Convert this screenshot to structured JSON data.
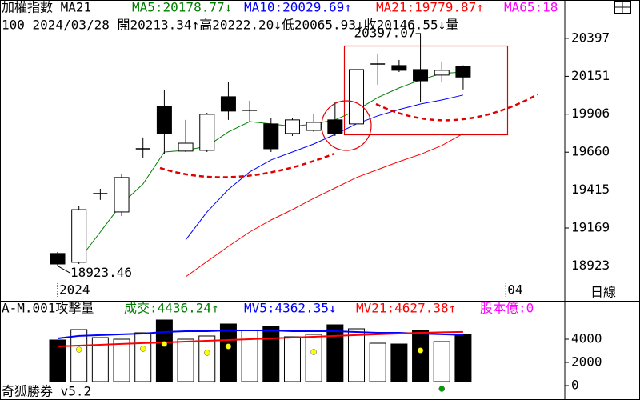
{
  "chart_data": [
    {
      "type": "candlestick",
      "title": "加權指數 MA21",
      "subtitle": "100 2024/03/28 開20213.34↑高20222.20↓低20065.93↓收20146.55↓量",
      "categories": [
        "2024",
        null,
        null,
        null,
        null,
        null,
        null,
        null,
        null,
        null,
        null,
        null,
        null,
        null,
        null,
        null,
        null,
        null,
        null,
        null,
        null,
        "04",
        null,
        null
      ],
      "open": [
        19004,
        18947,
        19392,
        19273,
        19682,
        19957,
        19667,
        19672,
        20019,
        19931,
        19843,
        19781,
        19801,
        19869,
        19843,
        20231,
        20221,
        20195,
        20159,
        20213.34,
        null,
        null,
        null,
        null
      ],
      "high": [
        19014,
        19309,
        19423,
        19522,
        19755,
        20060,
        19869,
        19915,
        20112,
        19993,
        19879,
        19884,
        19905,
        19983,
        20195,
        20293,
        20257,
        20397.07,
        20247,
        20222.2,
        null,
        null,
        null,
        null
      ],
      "low": [
        18923.46,
        18936,
        19351,
        19247,
        19625,
        19646,
        19661,
        19661,
        19869,
        19858,
        19661,
        19765,
        19791,
        19765,
        19843,
        20097,
        20179,
        19983,
        20112,
        20065.93,
        null,
        null,
        null,
        null
      ],
      "close": [
        18936,
        19288,
        19392,
        19496,
        19682,
        19781,
        19718,
        19905,
        19926,
        19931,
        19682,
        19869,
        19853,
        19781,
        20195,
        20231,
        20190,
        20122,
        20190,
        20146.55,
        null,
        null,
        null,
        null
      ],
      "series": [
        {
          "name": "MA5:20178.77↓",
          "color": "#008000",
          "values": [
            null,
            18962,
            19143,
            19325,
            19454,
            19661,
            19672,
            19698,
            19791,
            19858,
            19843,
            19827,
            19843,
            19869,
            19931,
            20014,
            20076,
            20128,
            20170,
            20178.77,
            null,
            null,
            null,
            null
          ]
        },
        {
          "name": "MA10:20029.69↑",
          "color": "#0000ff",
          "values": [
            null,
            null,
            null,
            null,
            null,
            null,
            19092,
            19273,
            19418,
            19532,
            19610,
            19661,
            19713,
            19775,
            19843,
            19895,
            19936,
            19972,
            19998,
            20029.69,
            null,
            null,
            null,
            null
          ]
        },
        {
          "name": "MA21:19779.87↑",
          "color": "#ff0000",
          "values": [
            null,
            null,
            null,
            null,
            null,
            null,
            18853,
            18952,
            19050,
            19143,
            19221,
            19288,
            19361,
            19428,
            19496,
            19547,
            19599,
            19646,
            19703,
            19779.87,
            null,
            null,
            null,
            null
          ]
        },
        {
          "name": "MA65:18",
          "color": "#ff00ff",
          "values": [
            null,
            null,
            null,
            null,
            null,
            null,
            null,
            null,
            null,
            null,
            null,
            null,
            null,
            null,
            null,
            null,
            null,
            null,
            null,
            null,
            null,
            null,
            null,
            null
          ]
        }
      ],
      "annotations": [
        "20397.07",
        "18923.46"
      ],
      "ylim": [
        18822,
        20552
      ],
      "yticks": [
        20397,
        20151,
        19906,
        19660,
        19415,
        19169,
        18923
      ]
    },
    {
      "type": "bar",
      "title": "A-M.001攻擊量",
      "info": "股本億:0",
      "info_color": "#ff00ff",
      "series": [
        {
          "name": "成交:4436.24↑",
          "color": "#008000",
          "type": "bar",
          "values": [
            3931,
            4828,
            4138,
            4000,
            4552,
            5655,
            4000,
            4276,
            5310,
            4759,
            5103,
            4207,
            4414,
            5241,
            4897,
            3655,
            3586,
            4759,
            3793,
            4436.24,
            null,
            null,
            null,
            null
          ]
        },
        {
          "name": "MV5:4362.35↓",
          "color": "#0000ff",
          "type": "line",
          "values": [
            4070,
            4280,
            4350,
            4420,
            4480,
            4620,
            4690,
            4690,
            4760,
            4760,
            4760,
            4690,
            4690,
            4690,
            4620,
            4550,
            4550,
            4480,
            4420,
            4362.35,
            null,
            null,
            null,
            null
          ]
        },
        {
          "name": "MV21:4627.38↑",
          "color": "#ff0000",
          "type": "line",
          "values": [
            3380,
            3450,
            3520,
            3590,
            3660,
            3720,
            3790,
            3860,
            3930,
            4000,
            4070,
            4140,
            4210,
            4280,
            4350,
            4420,
            4480,
            4550,
            4590,
            4627.38,
            null,
            null,
            null,
            null
          ]
        }
      ],
      "markers": [
        {
          "color": "#ffff00",
          "values": [
            null,
            3103,
            null,
            null,
            3172,
            3586,
            null,
            2828,
            3379,
            null,
            null,
            null,
            2897,
            null,
            null,
            null,
            null,
            3034,
            null,
            null,
            null,
            null,
            null,
            null
          ]
        },
        {
          "color": "#00a000",
          "values": [
            null,
            null,
            null,
            null,
            null,
            null,
            null,
            null,
            null,
            null,
            null,
            null,
            null,
            null,
            null,
            null,
            null,
            null,
            -276,
            null,
            null,
            null,
            null,
            null
          ]
        }
      ],
      "ylim": [
        0,
        7000
      ],
      "yticks": [
        4000,
        2000,
        0
      ]
    }
  ],
  "period": "日線",
  "footer": "奇狐勝券 v5.2"
}
